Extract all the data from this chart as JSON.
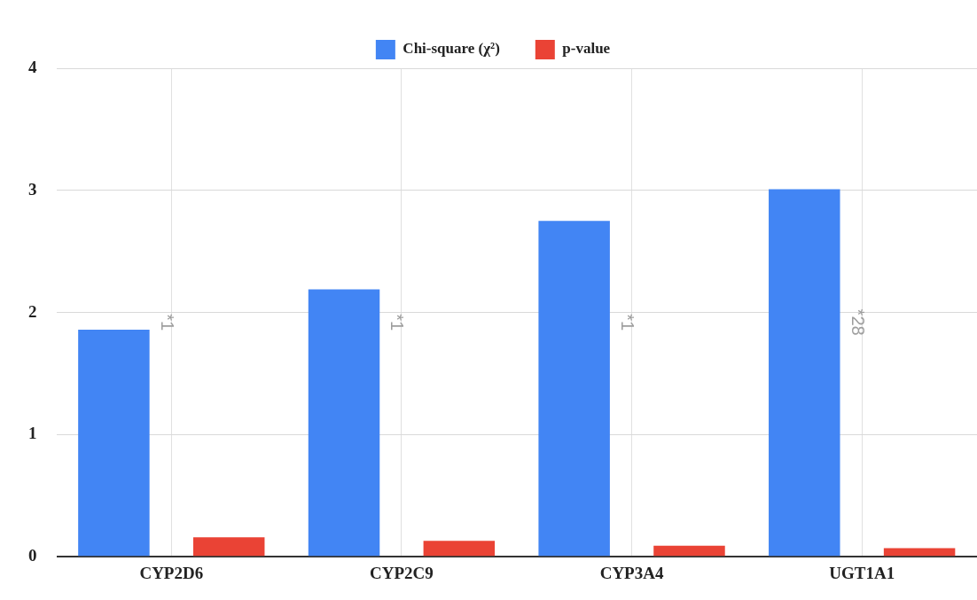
{
  "chart_data": {
    "type": "bar",
    "categories": [
      "CYP2D6",
      "CYP2C9",
      "CYP3A4",
      "UGT1A1"
    ],
    "series": [
      {
        "name": "Chi-square (χ²)",
        "color": "#4285f4",
        "values": [
          1.86,
          2.19,
          2.75,
          3.01
        ]
      },
      {
        "name": "p-value",
        "color": "#ea4335",
        "values": [
          0.16,
          0.13,
          0.09,
          0.07
        ]
      }
    ],
    "ylim": [
      0,
      4
    ],
    "yticks": [
      0,
      1,
      2,
      3,
      4
    ],
    "grid": true,
    "legend": "top",
    "annotations": [
      "*1",
      "*1",
      "*1",
      "*28"
    ]
  }
}
